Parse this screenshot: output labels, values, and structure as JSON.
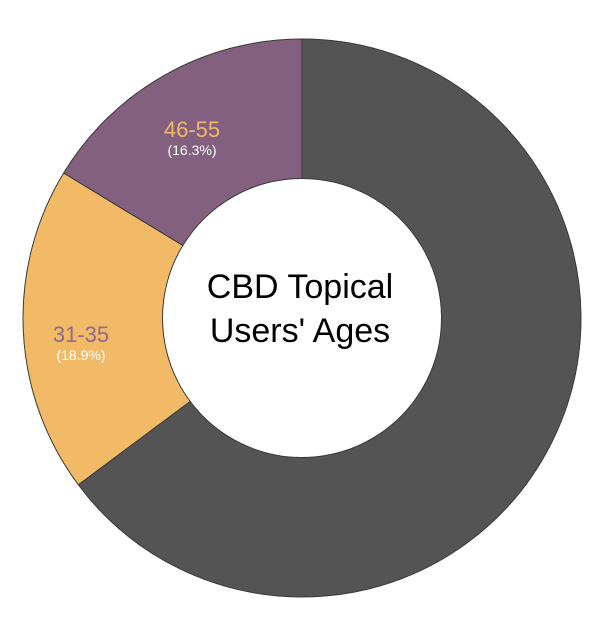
{
  "chart_data": {
    "type": "pie",
    "title_lines": [
      "CBD Topical",
      "Users' Ages"
    ],
    "slices": [
      {
        "label": "",
        "percent": 64.8,
        "color": "#545454",
        "label_color": "",
        "percent_text": ""
      },
      {
        "label": "31-35",
        "percent": 18.9,
        "color": "#f2b966",
        "label_color": "#8b6a8c",
        "percent_text": "(18.9%)"
      },
      {
        "label": "46-55",
        "percent": 16.3,
        "color": "#83607f",
        "label_color": "#f2b966",
        "percent_text": "(16.3%)"
      }
    ],
    "inner_radius_ratio": 0.5,
    "start": "top",
    "direction": "clockwise"
  }
}
